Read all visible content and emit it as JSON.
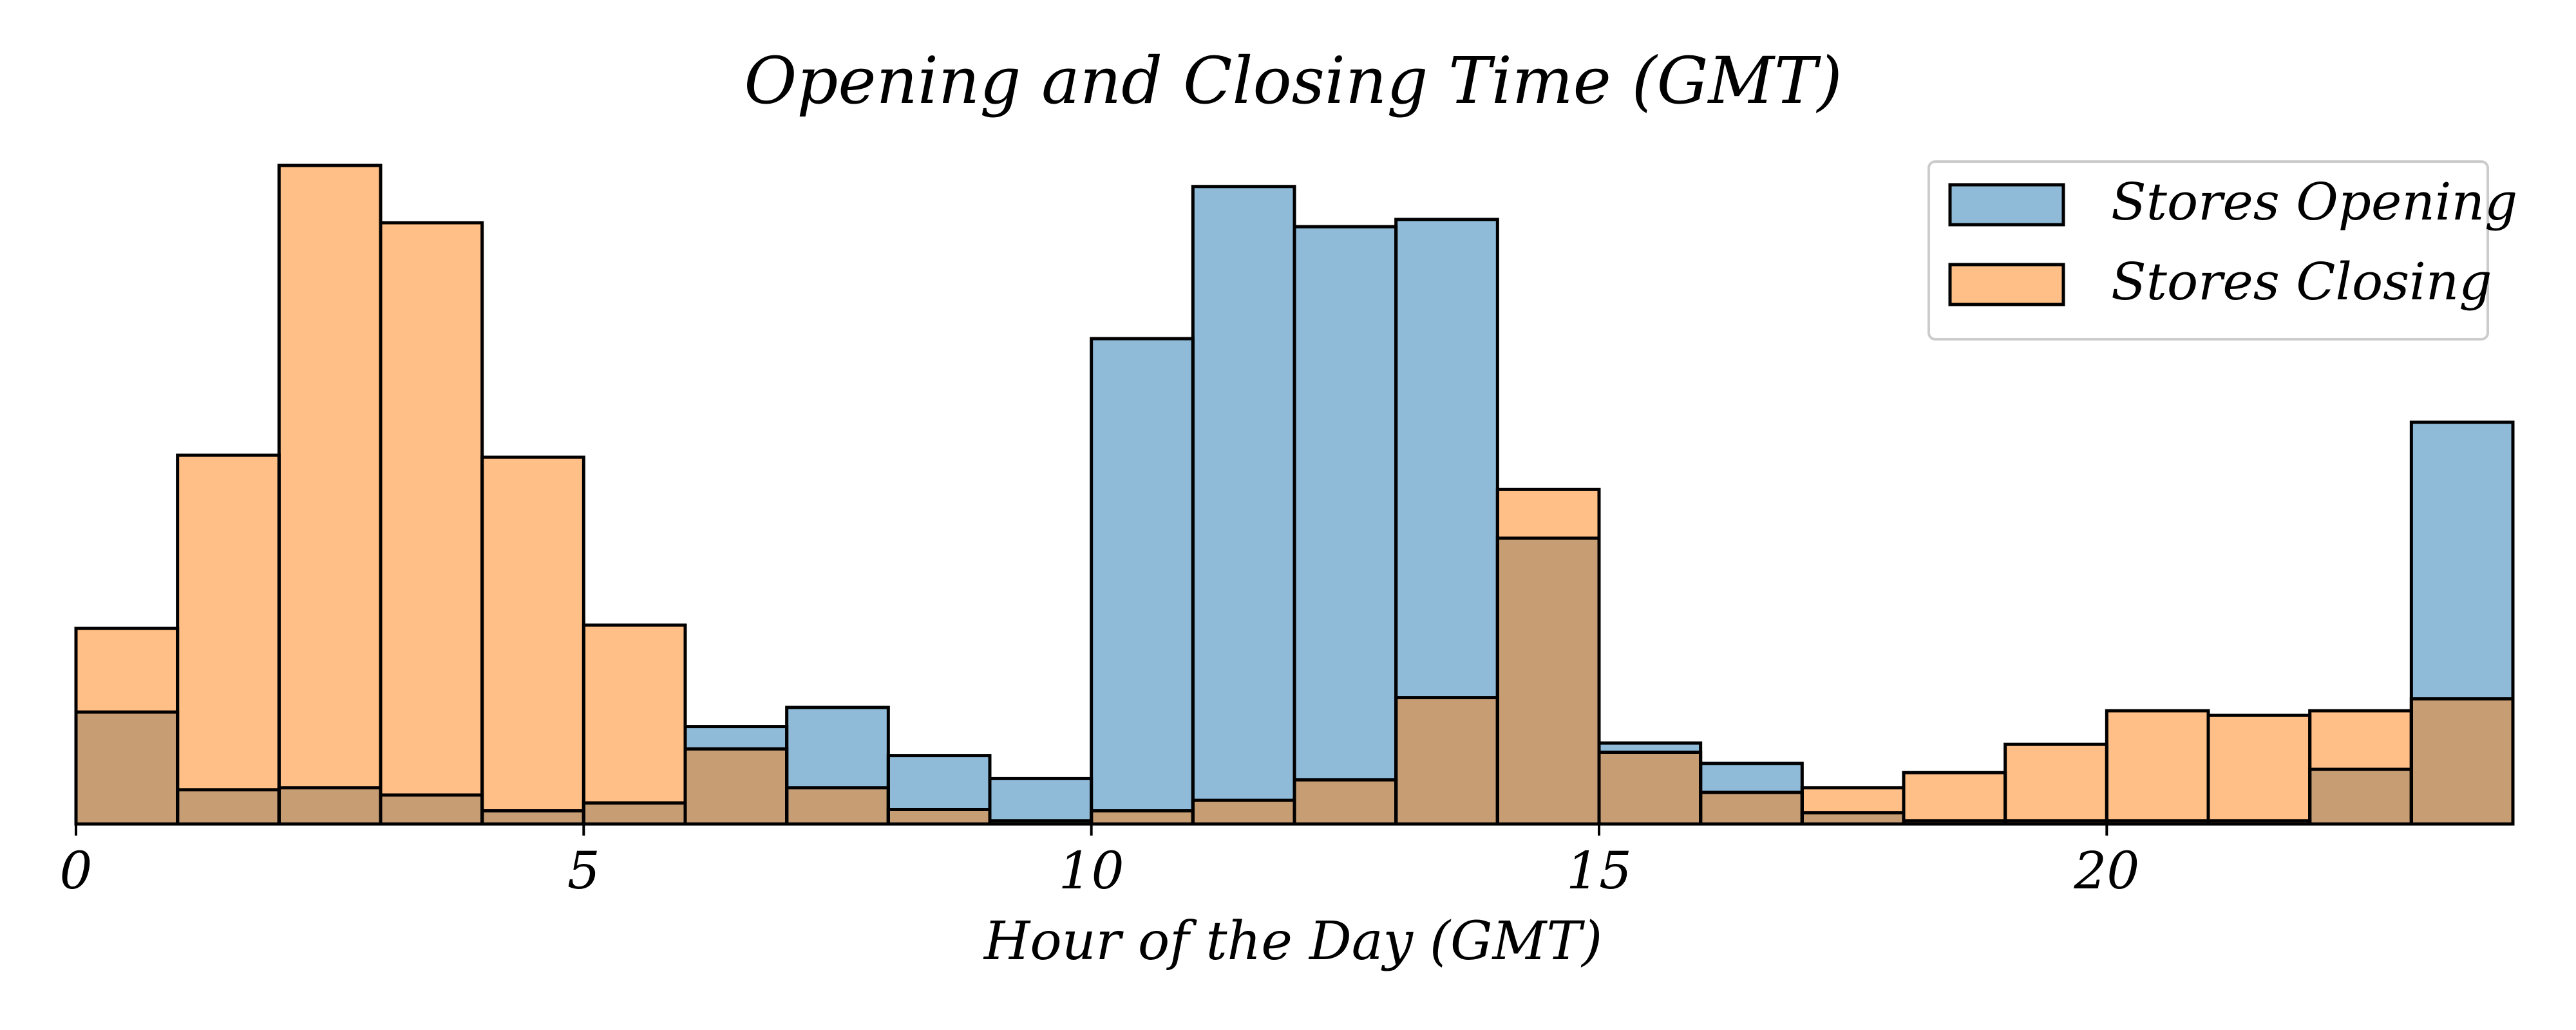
{
  "chart_data": {
    "type": "bar",
    "title": "Opening and Closing Time (GMT)",
    "xlabel": "Hour of the Day (GMT)",
    "ylabel": "",
    "xlim": [
      0,
      24
    ],
    "ylim": [
      0,
      1
    ],
    "x_ticks": [
      0,
      5,
      10,
      15,
      20
    ],
    "bin_edges": [
      0,
      1,
      2,
      3,
      4,
      5,
      6,
      7,
      8,
      9,
      10,
      11,
      12,
      13,
      14,
      15,
      16,
      17,
      18,
      19,
      20,
      21,
      22,
      23,
      24
    ],
    "grid": false,
    "legend_position": "top-right",
    "series": [
      {
        "name": "Stores Opening",
        "color": "#1f77b4",
        "values": [
          0.17,
          0.052,
          0.055,
          0.044,
          0.02,
          0.032,
          0.148,
          0.177,
          0.104,
          0.069,
          0.737,
          0.968,
          0.907,
          0.918,
          0.434,
          0.123,
          0.092,
          0.017,
          0.005,
          0.005,
          0.005,
          0.005,
          0.083,
          0.61
        ]
      },
      {
        "name": "Stores Closing",
        "color": "#ff7f0e",
        "values": [
          0.297,
          0.56,
          1.0,
          0.913,
          0.557,
          0.302,
          0.114,
          0.055,
          0.022,
          0.005,
          0.02,
          0.036,
          0.067,
          0.192,
          0.508,
          0.109,
          0.048,
          0.055,
          0.078,
          0.121,
          0.172,
          0.165,
          0.172,
          0.19
        ]
      }
    ]
  }
}
